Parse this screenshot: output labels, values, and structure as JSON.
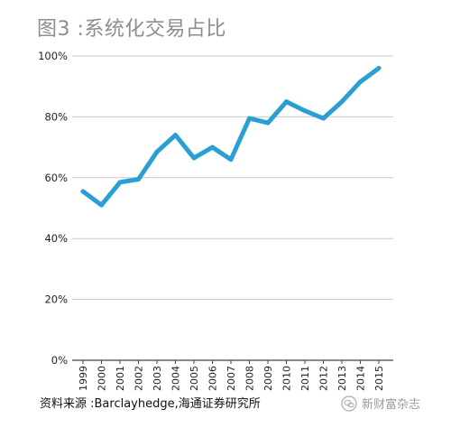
{
  "title": "图3 :系统化交易占比",
  "source": "资料来源 :Barclayhedge,海通证券研究所",
  "watermark": "新财富杂志",
  "colors": {
    "line": "#2a9fd4",
    "grid": "#c8c8c8",
    "axis": "#444444"
  },
  "chart_data": {
    "type": "line",
    "x": [
      "1999",
      "2000",
      "2001",
      "2002",
      "2003",
      "2004",
      "2005",
      "2006",
      "2007",
      "2008",
      "2009",
      "2010",
      "2011",
      "2012",
      "2013",
      "2014",
      "2015"
    ],
    "series": [
      {
        "values": [
          55.5,
          51,
          58.5,
          59.5,
          68.5,
          74,
          66.5,
          70,
          66,
          79.5,
          78,
          85,
          82,
          79.5,
          85,
          91.5,
          96
        ]
      }
    ],
    "ylim": [
      0,
      100
    ],
    "yticks": [
      "0%",
      "20%",
      "40%",
      "60%",
      "80%",
      "100%"
    ],
    "ytick_values": [
      0,
      20,
      40,
      60,
      80,
      100
    ],
    "grid": true,
    "xlabel": "",
    "ylabel": ""
  }
}
